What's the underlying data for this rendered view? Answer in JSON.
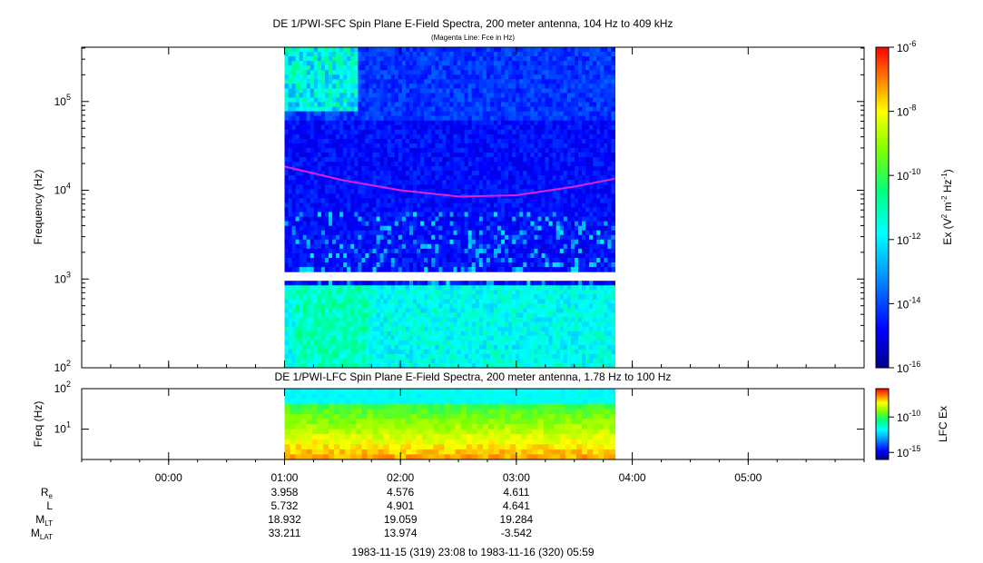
{
  "chart_data": [
    {
      "type": "heatmap",
      "title": "DE 1/PWI-SFC  Spin Plane E-Field Spectra, 200 meter antenna, 104 Hz to 409 kHz",
      "subtitle": "(Magenta Line: Fce in Hz)",
      "ylabel": "Frequency (Hz)",
      "yscale": "log",
      "ylim": [
        100,
        409000
      ],
      "yticks": [
        {
          "v": 100,
          "base": "10",
          "exp": "2"
        },
        {
          "v": 1000,
          "base": "10",
          "exp": "3"
        },
        {
          "v": 10000,
          "base": "10",
          "exp": "4"
        },
        {
          "v": 100000,
          "base": "10",
          "exp": "5"
        }
      ],
      "x_range_hours": [
        -0.75,
        6.0
      ],
      "data_start_hour": 1.0,
      "data_end_hour": 3.85,
      "data_gap_hz": [
        1000,
        1100
      ],
      "colorbar": {
        "label_prefix": "Ex (V",
        "label_mid": " m",
        "label_mid2": " Hz",
        "label_end": ")",
        "sup1": "2",
        "sup2": "-2",
        "sup3": "-1",
        "scale": "log",
        "range": [
          -16,
          -6
        ],
        "ticks": [
          {
            "v": -6,
            "base": "10",
            "exp": "-6"
          },
          {
            "v": -8,
            "base": "10",
            "exp": "-8"
          },
          {
            "v": -10,
            "base": "10",
            "exp": "-10"
          },
          {
            "v": -12,
            "base": "10",
            "exp": "-12"
          },
          {
            "v": -14,
            "base": "10",
            "exp": "-14"
          },
          {
            "v": -16,
            "base": "10",
            "exp": "-16"
          }
        ]
      },
      "series": [
        {
          "name": "Fce",
          "color": "#e020e0",
          "points": [
            [
              1.0,
              18500
            ],
            [
              1.5,
              13000
            ],
            [
              2.0,
              10000
            ],
            [
              2.5,
              8500
            ],
            [
              3.0,
              8800
            ],
            [
              3.5,
              11000
            ],
            [
              3.85,
              13500
            ]
          ]
        }
      ]
    },
    {
      "type": "heatmap",
      "title": "DE 1/PWI-LFC  Spin Plane E-Field Spectra, 200 meter antenna, 1.78 Hz to 100 Hz",
      "ylabel": "Freq (Hz)",
      "yscale": "log",
      "ylim": [
        1.78,
        100
      ],
      "yticks": [
        {
          "v": 10,
          "base": "10",
          "exp": "1"
        },
        {
          "v": 100,
          "base": "10",
          "exp": "2"
        }
      ],
      "colorbar": {
        "label": "LFC Ex",
        "scale": "log",
        "range": [
          -16,
          -6
        ],
        "ticks": [
          {
            "v": -10,
            "base": "10",
            "exp": "-10"
          },
          {
            "v": -15,
            "base": "10",
            "exp": "-15"
          }
        ]
      }
    }
  ],
  "xaxis": {
    "ticks": [
      {
        "h": 0,
        "label": "00:00"
      },
      {
        "h": 1,
        "label": "01:00"
      },
      {
        "h": 2,
        "label": "02:00"
      },
      {
        "h": 3,
        "label": "03:00"
      },
      {
        "h": 4,
        "label": "04:00"
      },
      {
        "h": 5,
        "label": "05:00"
      }
    ],
    "time_range": "1983-11-15 (319) 23:08 to 1983-11-16 (320) 05:59"
  },
  "ephemeris": [
    {
      "label": "R",
      "sub": "e",
      "values": [
        "3.958",
        "4.576",
        "4.611"
      ]
    },
    {
      "label": "L",
      "sub": "",
      "values": [
        "5.732",
        "4.901",
        "4.641"
      ]
    },
    {
      "label": "M",
      "sub": "LT",
      "values": [
        "18.932",
        "19.059",
        "19.284"
      ]
    },
    {
      "label": "M",
      "sub": "LAT",
      "values": [
        "33.211",
        "13.974",
        "-3.542"
      ]
    }
  ]
}
